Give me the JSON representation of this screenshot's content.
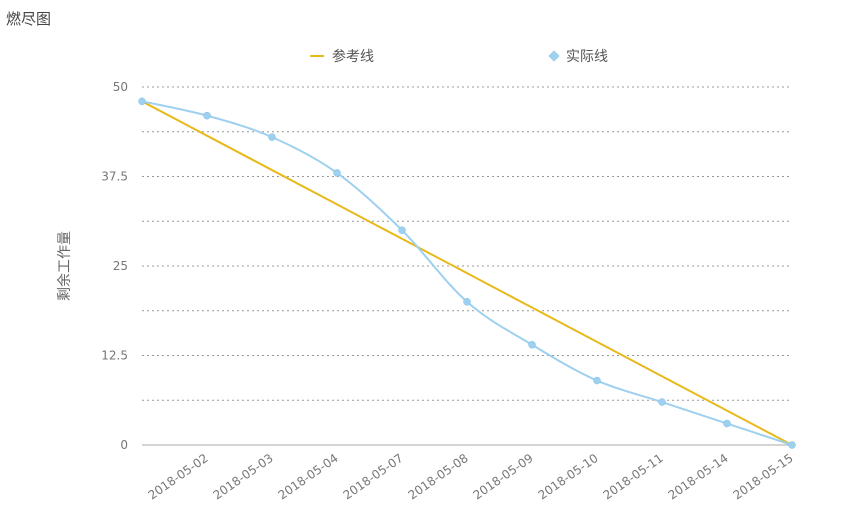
{
  "page": {
    "title": "燃尽图"
  },
  "legend": {
    "reference_label": "参考线",
    "actual_label": "实际线"
  },
  "colors": {
    "reference": "#E8B91A",
    "actual": "#9ED0F0",
    "grid": "#999999",
    "axis": "#aaaaaa"
  },
  "chart_data": {
    "type": "line",
    "title": "燃尽图",
    "xlabel": "",
    "ylabel": "剩余工作量",
    "ylim": [
      0,
      50
    ],
    "yticks": [
      "0",
      "12.5",
      "25",
      "37.5",
      "50"
    ],
    "categories": [
      "",
      "2018-05-02",
      "2018-05-03",
      "2018-05-04",
      "2018-05-07",
      "2018-05-08",
      "2018-05-09",
      "2018-05-10",
      "2018-05-11",
      "2018-05-14",
      "2018-05-15"
    ],
    "series": [
      {
        "name": "参考线",
        "values": [
          48,
          43.2,
          38.4,
          33.6,
          28.8,
          24,
          19.2,
          14.4,
          9.6,
          4.8,
          0
        ]
      },
      {
        "name": "实际线",
        "values": [
          48,
          46,
          43,
          38,
          30,
          20,
          14,
          9,
          6,
          3,
          0
        ]
      }
    ],
    "grid": true,
    "legend_position": "top"
  }
}
